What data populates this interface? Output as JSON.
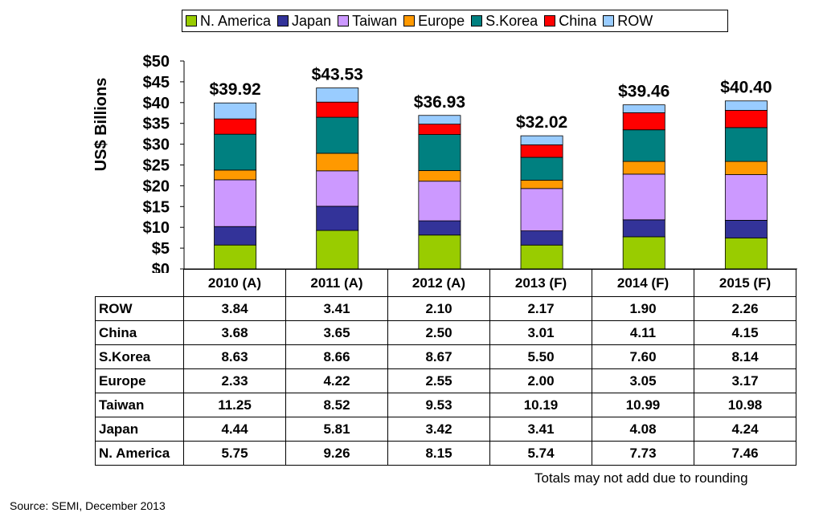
{
  "chart_data": {
    "type": "bar",
    "stacked": true,
    "categories": [
      "2010 (A)",
      "2011 (A)",
      "2012 (A)",
      "2013 (F)",
      "2014 (F)",
      "2015 (F)"
    ],
    "series": [
      {
        "name": "N. America",
        "color": "#99cc00",
        "values": [
          5.75,
          9.26,
          8.15,
          5.74,
          7.73,
          7.46
        ]
      },
      {
        "name": "Japan",
        "color": "#333399",
        "values": [
          4.44,
          5.81,
          3.42,
          3.41,
          4.08,
          4.24
        ]
      },
      {
        "name": "Taiwan",
        "color": "#cc99ff",
        "values": [
          11.25,
          8.52,
          9.53,
          10.19,
          10.99,
          10.98
        ]
      },
      {
        "name": "Europe",
        "color": "#ff9900",
        "values": [
          2.33,
          4.22,
          2.55,
          2.0,
          3.05,
          3.17
        ]
      },
      {
        "name": "S.Korea",
        "color": "#008080",
        "values": [
          8.63,
          8.66,
          8.67,
          5.5,
          7.6,
          8.14
        ]
      },
      {
        "name": "China",
        "color": "#ff0000",
        "values": [
          3.68,
          3.65,
          2.5,
          3.01,
          4.11,
          4.15
        ]
      },
      {
        "name": "ROW",
        "color": "#99ccff",
        "values": [
          3.84,
          3.41,
          2.1,
          2.17,
          1.9,
          2.26
        ]
      }
    ],
    "totals": [
      "$39.92",
      "$43.53",
      "$36.93",
      "$32.02",
      "$39.46",
      "$40.40"
    ],
    "ylabel": "US$ Billions",
    "ylim": [
      0,
      50
    ],
    "yticks": [
      "$0",
      "$5",
      "$10",
      "$15",
      "$20",
      "$25",
      "$30",
      "$35",
      "$40",
      "$45",
      "$50"
    ],
    "legend_position": "top",
    "grid": false
  },
  "table": {
    "row_order": [
      "ROW",
      "China",
      "S.Korea",
      "Europe",
      "Taiwan",
      "Japan",
      "N. America"
    ]
  },
  "note": "Totals may not add due to rounding",
  "source": "Source: SEMI, December 2013"
}
